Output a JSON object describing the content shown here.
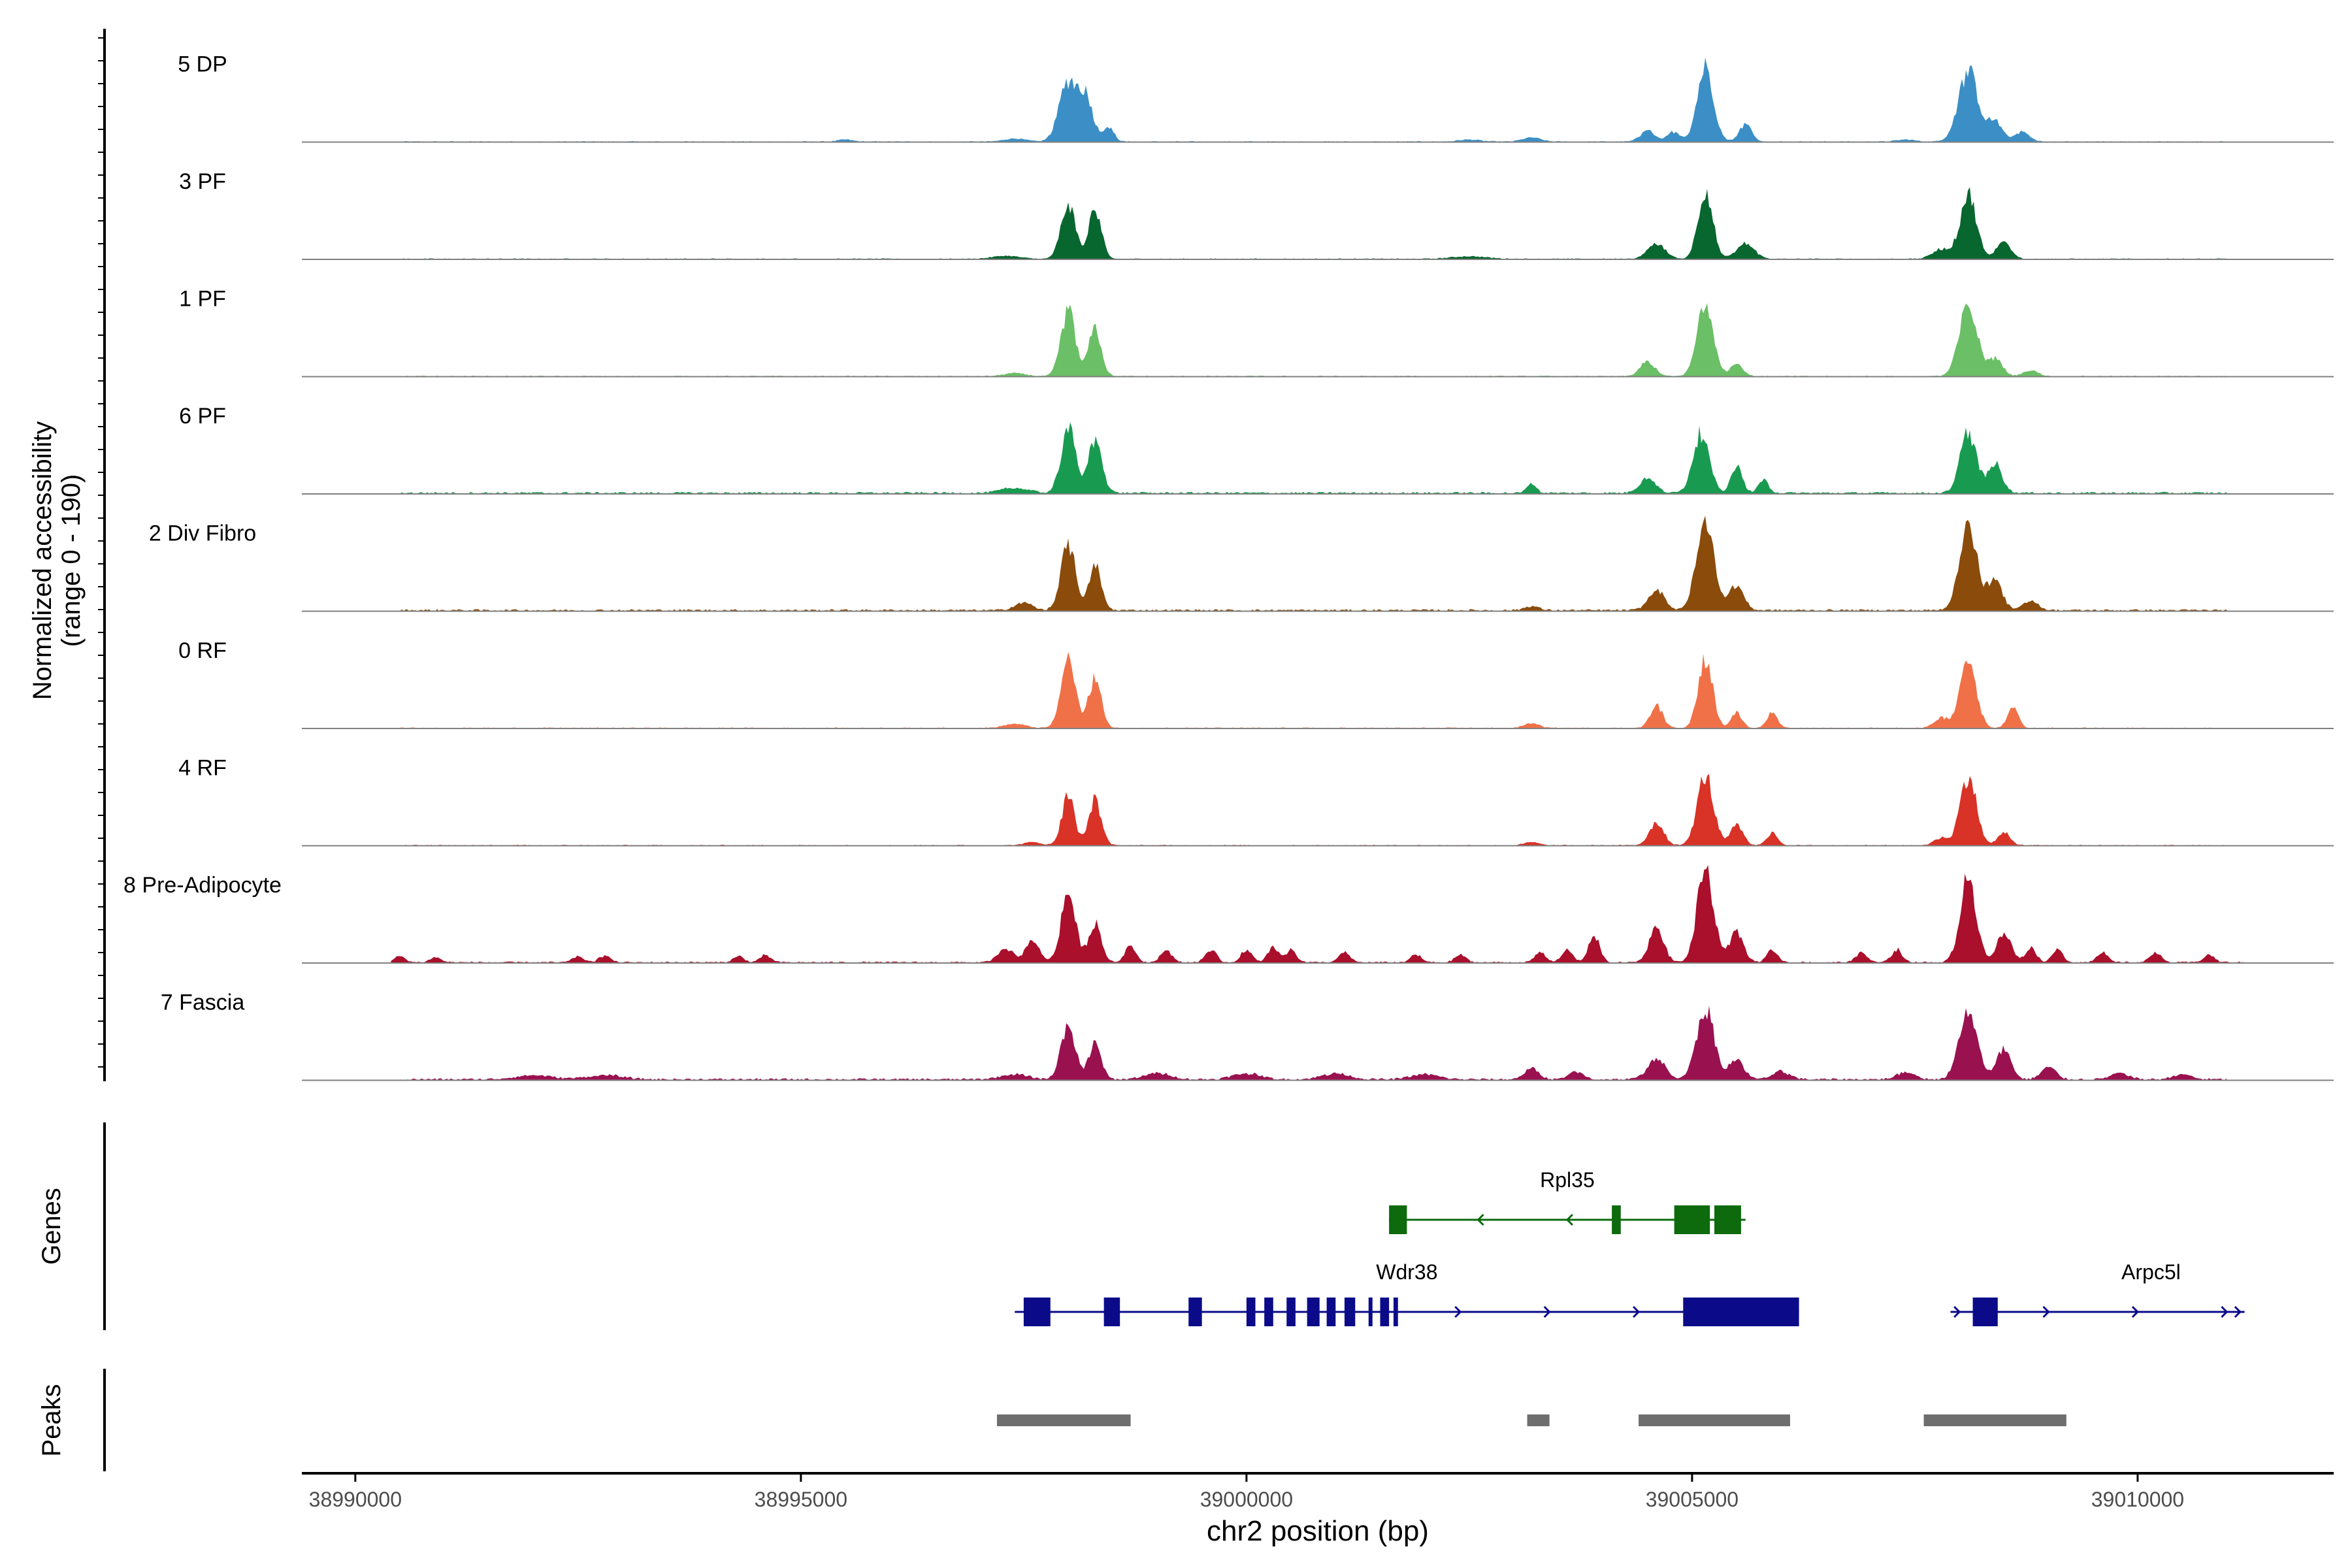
{
  "chart_data": {
    "type": "area",
    "subtype": "genome-coverage-track",
    "chromosome": "chr2",
    "region": [
      38989400,
      39012200
    ],
    "xlabel": "chr2 position (bp)",
    "xticks": [
      38990000,
      38995000,
      39000000,
      39005000,
      39010000
    ],
    "xtick_labels": [
      "38990000",
      "38995000",
      "39000000",
      "39005000",
      "39010000"
    ],
    "ylabel_line1": "Normalized accessibility",
    "ylabel_line2": "(range 0 - 190)",
    "yrange": [
      0,
      190
    ],
    "tracks": [
      {
        "name": "5 DP",
        "color": "#3b8fc6",
        "peaks": [
          [
            38995500,
            4,
            80
          ],
          [
            38997400,
            6,
            120
          ],
          [
            38998000,
            120,
            100
          ],
          [
            38998200,
            85,
            80
          ],
          [
            38998450,
            30,
            60
          ],
          [
            39002500,
            4,
            120
          ],
          [
            39003200,
            8,
            100
          ],
          [
            39004500,
            22,
            80
          ],
          [
            39004800,
            20,
            70
          ],
          [
            39005150,
            150,
            90
          ],
          [
            39005600,
            35,
            70
          ],
          [
            39007400,
            4,
            100
          ],
          [
            39008100,
            140,
            110
          ],
          [
            39008400,
            40,
            80
          ],
          [
            39008700,
            20,
            80
          ]
        ],
        "noise": 2,
        "support": [
          38990500,
          39011000
        ]
      },
      {
        "name": "3 PF",
        "color": "#08662f",
        "peaks": [
          [
            38997300,
            6,
            150
          ],
          [
            38998000,
            110,
            80
          ],
          [
            38998300,
            100,
            70
          ],
          [
            39002500,
            5,
            200
          ],
          [
            39004600,
            30,
            100
          ],
          [
            39005150,
            140,
            80
          ],
          [
            39005600,
            30,
            100
          ],
          [
            39007800,
            20,
            100
          ],
          [
            39008100,
            130,
            90
          ],
          [
            39008500,
            35,
            80
          ]
        ],
        "noise": 2,
        "support": [
          38990500,
          39011000
        ]
      },
      {
        "name": "1 PF",
        "color": "#6bbf66",
        "peaks": [
          [
            38997400,
            6,
            120
          ],
          [
            38998000,
            130,
            80
          ],
          [
            38998300,
            95,
            70
          ],
          [
            39004500,
            30,
            80
          ],
          [
            39005150,
            150,
            90
          ],
          [
            39005500,
            25,
            70
          ],
          [
            39008100,
            140,
            100
          ],
          [
            39008400,
            35,
            80
          ],
          [
            39008800,
            12,
            80
          ]
        ],
        "noise": 2,
        "support": [
          38990500,
          39011000
        ]
      },
      {
        "name": "6 PF",
        "color": "#189b50",
        "peaks": [
          [
            38997400,
            10,
            150
          ],
          [
            38998000,
            130,
            80
          ],
          [
            38998300,
            100,
            80
          ],
          [
            39003200,
            20,
            50
          ],
          [
            39004500,
            30,
            90
          ],
          [
            39005100,
            120,
            90
          ],
          [
            39005500,
            55,
            60
          ],
          [
            39005800,
            25,
            60
          ],
          [
            39008100,
            120,
            90
          ],
          [
            39008400,
            60,
            80
          ]
        ],
        "noise": 4,
        "support": [
          38990500,
          39011000
        ]
      },
      {
        "name": "2 Div Fibro",
        "color": "#8a4b0b",
        "peaks": [
          [
            38997500,
            15,
            100
          ],
          [
            38998000,
            130,
            80
          ],
          [
            38998300,
            90,
            70
          ],
          [
            39003200,
            8,
            80
          ],
          [
            39004600,
            40,
            90
          ],
          [
            39005150,
            170,
            100
          ],
          [
            39005500,
            50,
            80
          ],
          [
            39008100,
            165,
            100
          ],
          [
            39008400,
            60,
            80
          ],
          [
            39008800,
            20,
            80
          ]
        ],
        "noise": 4,
        "support": [
          38990500,
          39011000
        ]
      },
      {
        "name": "0 RF",
        "color": "#f07148",
        "peaks": [
          [
            38997400,
            8,
            120
          ],
          [
            38998000,
            140,
            80
          ],
          [
            38998300,
            100,
            70
          ],
          [
            39003200,
            10,
            80
          ],
          [
            39004600,
            45,
            70
          ],
          [
            39005150,
            140,
            80
          ],
          [
            39005500,
            30,
            60
          ],
          [
            39005900,
            30,
            60
          ],
          [
            39007800,
            20,
            80
          ],
          [
            39008100,
            130,
            90
          ],
          [
            39008600,
            40,
            60
          ]
        ],
        "noise": 2,
        "support": [
          38990500,
          39011000
        ]
      },
      {
        "name": "4 RF",
        "color": "#d93226",
        "peaks": [
          [
            38997600,
            6,
            100
          ],
          [
            38998000,
            100,
            70
          ],
          [
            38998300,
            90,
            70
          ],
          [
            39003200,
            6,
            80
          ],
          [
            39004600,
            45,
            80
          ],
          [
            39005150,
            140,
            90
          ],
          [
            39005500,
            40,
            70
          ],
          [
            39005900,
            25,
            60
          ],
          [
            39007800,
            15,
            80
          ],
          [
            39008100,
            140,
            90
          ],
          [
            39008500,
            25,
            70
          ]
        ],
        "noise": 2,
        "support": [
          38990500,
          39011000
        ]
      },
      {
        "name": "8 Pre-Adipocyte",
        "color": "#aa0f2c",
        "peaks": [
          [
            38990500,
            12,
            60
          ],
          [
            38990900,
            10,
            60
          ],
          [
            38992500,
            12,
            60
          ],
          [
            38992800,
            14,
            60
          ],
          [
            38994300,
            12,
            60
          ],
          [
            38994600,
            14,
            60
          ],
          [
            38997300,
            25,
            90
          ],
          [
            38997600,
            40,
            80
          ],
          [
            38998000,
            140,
            80
          ],
          [
            38998300,
            80,
            70
          ],
          [
            38998700,
            35,
            60
          ],
          [
            38999100,
            25,
            60
          ],
          [
            38999600,
            25,
            60
          ],
          [
            39000000,
            25,
            60
          ],
          [
            39000300,
            30,
            60
          ],
          [
            39000500,
            25,
            60
          ],
          [
            39001100,
            20,
            60
          ],
          [
            39001900,
            15,
            60
          ],
          [
            39002400,
            15,
            60
          ],
          [
            39003300,
            20,
            60
          ],
          [
            39003600,
            25,
            60
          ],
          [
            39003900,
            55,
            60
          ],
          [
            39004600,
            70,
            80
          ],
          [
            39005150,
            190,
            90
          ],
          [
            39005500,
            60,
            80
          ],
          [
            39005900,
            25,
            60
          ],
          [
            39006900,
            20,
            60
          ],
          [
            39007300,
            25,
            60
          ],
          [
            39008100,
            170,
            90
          ],
          [
            39008500,
            60,
            80
          ],
          [
            39008800,
            30,
            60
          ],
          [
            39009100,
            25,
            60
          ],
          [
            39009600,
            20,
            60
          ],
          [
            39010200,
            20,
            60
          ],
          [
            39010800,
            15,
            60
          ]
        ],
        "noise": 3,
        "support": [
          38990400,
          39011200
        ]
      },
      {
        "name": "7 Fascia",
        "color": "#9a1150",
        "peaks": [
          [
            38992000,
            8,
            200
          ],
          [
            38992800,
            8,
            200
          ],
          [
            38997400,
            10,
            150
          ],
          [
            38998000,
            110,
            80
          ],
          [
            38998300,
            70,
            70
          ],
          [
            38999000,
            12,
            150
          ],
          [
            39000000,
            12,
            150
          ],
          [
            39001000,
            12,
            150
          ],
          [
            39002000,
            10,
            150
          ],
          [
            39003200,
            22,
            80
          ],
          [
            39003700,
            15,
            80
          ],
          [
            39004600,
            40,
            100
          ],
          [
            39005150,
            140,
            100
          ],
          [
            39005500,
            40,
            80
          ],
          [
            39006000,
            15,
            100
          ],
          [
            39007400,
            15,
            100
          ],
          [
            39008100,
            140,
            100
          ],
          [
            39008500,
            60,
            80
          ],
          [
            39009000,
            25,
            80
          ],
          [
            39009800,
            12,
            100
          ],
          [
            39010500,
            10,
            100
          ]
        ],
        "noise": 4,
        "support": [
          38990500,
          39011000
        ]
      }
    ],
    "genes": [
      {
        "name": "Rpl35",
        "color": "#0d6a0d",
        "strand": "-",
        "row": 0,
        "span": [
          39001600,
          39005600
        ],
        "exons": [
          [
            39001600,
            39001800
          ],
          [
            39004100,
            39004200
          ],
          [
            39004800,
            39005200
          ],
          [
            39005250,
            39005550
          ]
        ],
        "arrows": [
          39002600,
          39003600
        ]
      },
      {
        "name": "Wdr38",
        "color": "#0b0b8a",
        "strand": "+",
        "row": 1,
        "span": [
          38997400,
          39006200
        ],
        "exons": [
          [
            38997500,
            38997800
          ],
          [
            38998400,
            38998580
          ],
          [
            38999350,
            38999500
          ],
          [
            39000000,
            39000100
          ],
          [
            39000200,
            39000300
          ],
          [
            39000450,
            39000550
          ],
          [
            39000680,
            39000820
          ],
          [
            39000900,
            39001000
          ],
          [
            39001100,
            39001220
          ],
          [
            39001370,
            39001400
          ],
          [
            39001500,
            39001600
          ],
          [
            39001650,
            39001700
          ],
          [
            39004900,
            39006200
          ]
        ],
        "arrows": [
          38999450,
          39002400,
          39003400,
          39004400
        ]
      },
      {
        "name": "Arpc5l",
        "color": "#0b0b8a",
        "strand": "+",
        "row": 1,
        "span": [
          39007900,
          39011200
        ],
        "exons": [
          [
            39008150,
            39008430
          ]
        ],
        "arrows": [
          39008000,
          39009000,
          39010000,
          39011000,
          39011150
        ]
      }
    ],
    "genes_label": "Genes",
    "peaks_label": "Peaks",
    "peak_regions": [
      [
        38997200,
        38998700
      ],
      [
        39003150,
        39003400
      ],
      [
        39004400,
        39006100
      ],
      [
        39007600,
        39009200
      ]
    ],
    "peak_color": "#6e6e6e"
  }
}
